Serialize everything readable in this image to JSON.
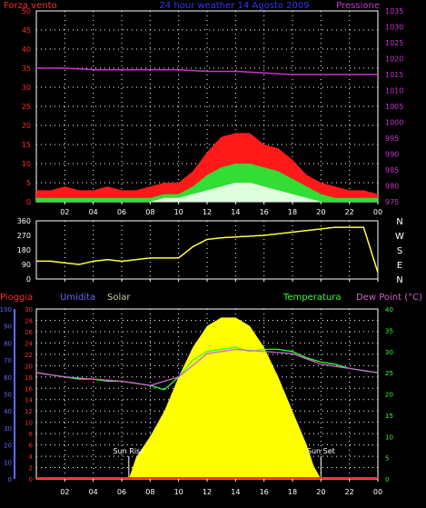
{
  "header": {
    "left": "Forza vento",
    "center": "24 hour weather 14 Agosto 2009",
    "right": "Pressione"
  },
  "colors": {
    "wind_gust": "#ff1a1a",
    "wind_avg": "#33dd33",
    "wind_low": "#e8ffe8",
    "pressure": "#cc33cc",
    "direction": "#ffff33",
    "rain": "#ff2a2a",
    "humidity": "#6666ff",
    "solar": "#ffff00",
    "temperature": "#33ff33",
    "dewpoint": "#cc66cc",
    "grid": "#ffffff",
    "axis": "#ffffff"
  },
  "x_ticks": [
    "02",
    "04",
    "06",
    "08",
    "10",
    "12",
    "14",
    "16",
    "18",
    "20",
    "22",
    "00"
  ],
  "chart_data": [
    {
      "type": "area",
      "name": "wind-pressure",
      "x_ticks": [
        "02",
        "04",
        "06",
        "08",
        "10",
        "12",
        "14",
        "16",
        "18",
        "20",
        "22",
        "00"
      ],
      "y_left": {
        "label": "Forza vento",
        "ticks": [
          "0",
          "5",
          "10",
          "15",
          "20",
          "25",
          "30",
          "35",
          "40",
          "45",
          "50"
        ],
        "range": [
          0,
          50
        ]
      },
      "y_right": {
        "label": "Pressione",
        "ticks": [
          "975",
          "980",
          "985",
          "990",
          "995",
          "1000",
          "1005",
          "1010",
          "1015",
          "1020",
          "1025",
          "1030",
          "1035"
        ],
        "range": [
          975,
          1035
        ]
      },
      "grid": true,
      "series": [
        {
          "name": "gust",
          "hours": [
            0,
            1,
            2,
            3,
            4,
            5,
            6,
            7,
            8,
            9,
            10,
            11,
            12,
            13,
            14,
            15,
            16,
            17,
            18,
            19,
            20,
            21,
            22,
            23,
            24
          ],
          "values": [
            3,
            3,
            4,
            3,
            3,
            4,
            3,
            3,
            4,
            5,
            5,
            8,
            13,
            17,
            18,
            18,
            15,
            14,
            11,
            7,
            5,
            4,
            3,
            3,
            2
          ]
        },
        {
          "name": "average",
          "hours": [
            0,
            1,
            2,
            3,
            4,
            5,
            6,
            7,
            8,
            9,
            10,
            11,
            12,
            13,
            14,
            15,
            16,
            17,
            18,
            19,
            20,
            21,
            22,
            23,
            24
          ],
          "values": [
            1,
            1,
            1,
            1,
            1,
            1,
            1,
            1,
            1,
            2,
            2,
            4,
            7,
            9,
            10,
            10,
            9,
            8,
            6,
            4,
            2,
            1,
            1,
            1,
            1
          ]
        },
        {
          "name": "low",
          "hours": [
            0,
            1,
            2,
            3,
            4,
            5,
            6,
            7,
            8,
            9,
            10,
            11,
            12,
            13,
            14,
            15,
            16,
            17,
            18,
            19,
            20,
            21,
            22,
            23,
            24
          ],
          "values": [
            0,
            0,
            0,
            0,
            0,
            0,
            0,
            0,
            0,
            1,
            1,
            2,
            3,
            4,
            5,
            5,
            4,
            3,
            2,
            1,
            0,
            0,
            0,
            0,
            0
          ]
        },
        {
          "name": "pressure",
          "hours": [
            0,
            2,
            4,
            6,
            8,
            10,
            12,
            14,
            16,
            18,
            20,
            22,
            24
          ],
          "values": [
            1017,
            1017,
            1016.5,
            1016.5,
            1016.5,
            1016.5,
            1016,
            1016,
            1015.5,
            1015,
            1015,
            1015,
            1015
          ]
        }
      ]
    },
    {
      "type": "line",
      "name": "wind-direction",
      "x_ticks": [
        "02",
        "04",
        "06",
        "08",
        "10",
        "12",
        "14",
        "16",
        "18",
        "20",
        "22",
        "00"
      ],
      "y_left": {
        "ticks": [
          "0",
          "90",
          "180",
          "270",
          "360"
        ],
        "range": [
          0,
          360
        ]
      },
      "y_right": {
        "ticks": [
          "N",
          "W",
          "S",
          "E",
          "N"
        ]
      },
      "series": [
        {
          "name": "direction",
          "hours": [
            0,
            1,
            2,
            3,
            4,
            5,
            6,
            7,
            8,
            9,
            10,
            11,
            12,
            13,
            14,
            15,
            16,
            17,
            18,
            19,
            20,
            21,
            22,
            23,
            24
          ],
          "values": [
            110,
            110,
            100,
            90,
            110,
            120,
            110,
            120,
            130,
            130,
            130,
            200,
            245,
            255,
            260,
            265,
            270,
            280,
            290,
            300,
            310,
            320,
            320,
            320,
            40
          ]
        }
      ]
    },
    {
      "type": "area",
      "name": "rain-humidity-solar-temperature",
      "header": {
        "rain": "Pioggia",
        "humidity": "Umidita",
        "solar": "Solar",
        "temperature": "Temperatura",
        "dewpoint": "Dew Point (°C)"
      },
      "x_ticks": [
        "02",
        "04",
        "06",
        "08",
        "10",
        "12",
        "14",
        "16",
        "18",
        "20",
        "22",
        "00"
      ],
      "y_humidity": {
        "ticks": [
          "0",
          "10",
          "20",
          "30",
          "40",
          "50",
          "60",
          "70",
          "80",
          "90",
          "100"
        ],
        "range": [
          0,
          100
        ]
      },
      "y_rain": {
        "ticks": [
          "0",
          "2",
          "4",
          "6",
          "8",
          "10",
          "12",
          "14",
          "16",
          "18",
          "20",
          "22",
          "24",
          "26",
          "28",
          "30"
        ],
        "range": [
          0,
          30
        ]
      },
      "y_temp": {
        "ticks": [
          "0",
          "5",
          "10",
          "15",
          "20",
          "25",
          "30",
          "35",
          "40"
        ],
        "range": [
          0,
          40
        ]
      },
      "annotations": [
        "Sun Rise",
        "Sun Set"
      ],
      "series": [
        {
          "name": "temperature",
          "hours": [
            0,
            1,
            2,
            3,
            4,
            5,
            6,
            7,
            8,
            9,
            10,
            11,
            12,
            13,
            14,
            15,
            16,
            17,
            18,
            19,
            20,
            21,
            22,
            23,
            24
          ],
          "values": [
            25,
            24.5,
            24,
            23.5,
            23.5,
            23,
            23,
            22.5,
            22,
            21,
            24,
            28,
            30,
            30.5,
            31,
            30,
            30.5,
            30.5,
            30,
            28.5,
            27.5,
            27,
            26,
            25.5,
            25
          ]
        },
        {
          "name": "dewpoint",
          "hours": [
            0,
            2,
            4,
            6,
            8,
            10,
            12,
            14,
            16,
            18,
            20,
            22,
            24
          ],
          "values": [
            25,
            24,
            23.5,
            23,
            22,
            24,
            29.5,
            30.5,
            30,
            29.5,
            27,
            26,
            25
          ]
        },
        {
          "name": "solar",
          "hours": [
            6.5,
            7,
            8,
            9,
            10,
            11,
            12,
            13,
            14,
            15,
            16,
            17,
            18,
            19,
            19.5,
            20
          ],
          "values": [
            0,
            5,
            10,
            16,
            24,
            31,
            36,
            38,
            38,
            36,
            31,
            24,
            16,
            8,
            3,
            0
          ]
        },
        {
          "name": "rain",
          "hours": [
            0,
            24
          ],
          "values": [
            0,
            0
          ]
        }
      ]
    }
  ]
}
